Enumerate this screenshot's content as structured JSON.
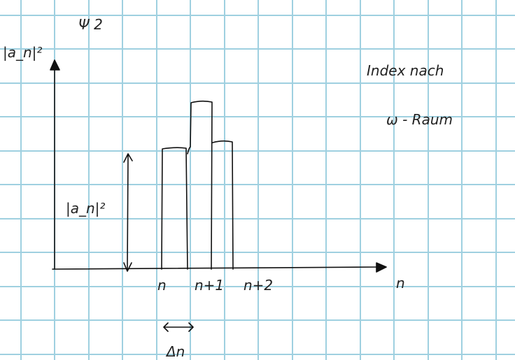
{
  "labels": {
    "y_axis": "|a_n|²",
    "top": "Ψ 2",
    "note_line_1": "Index nach",
    "note_line_2": "ω - Raum",
    "height": "|a_n|²",
    "tick_0": "n",
    "tick_1": "n+1",
    "tick_2": "n+2",
    "x_axis": "n",
    "spacing": "Δn"
  }
}
